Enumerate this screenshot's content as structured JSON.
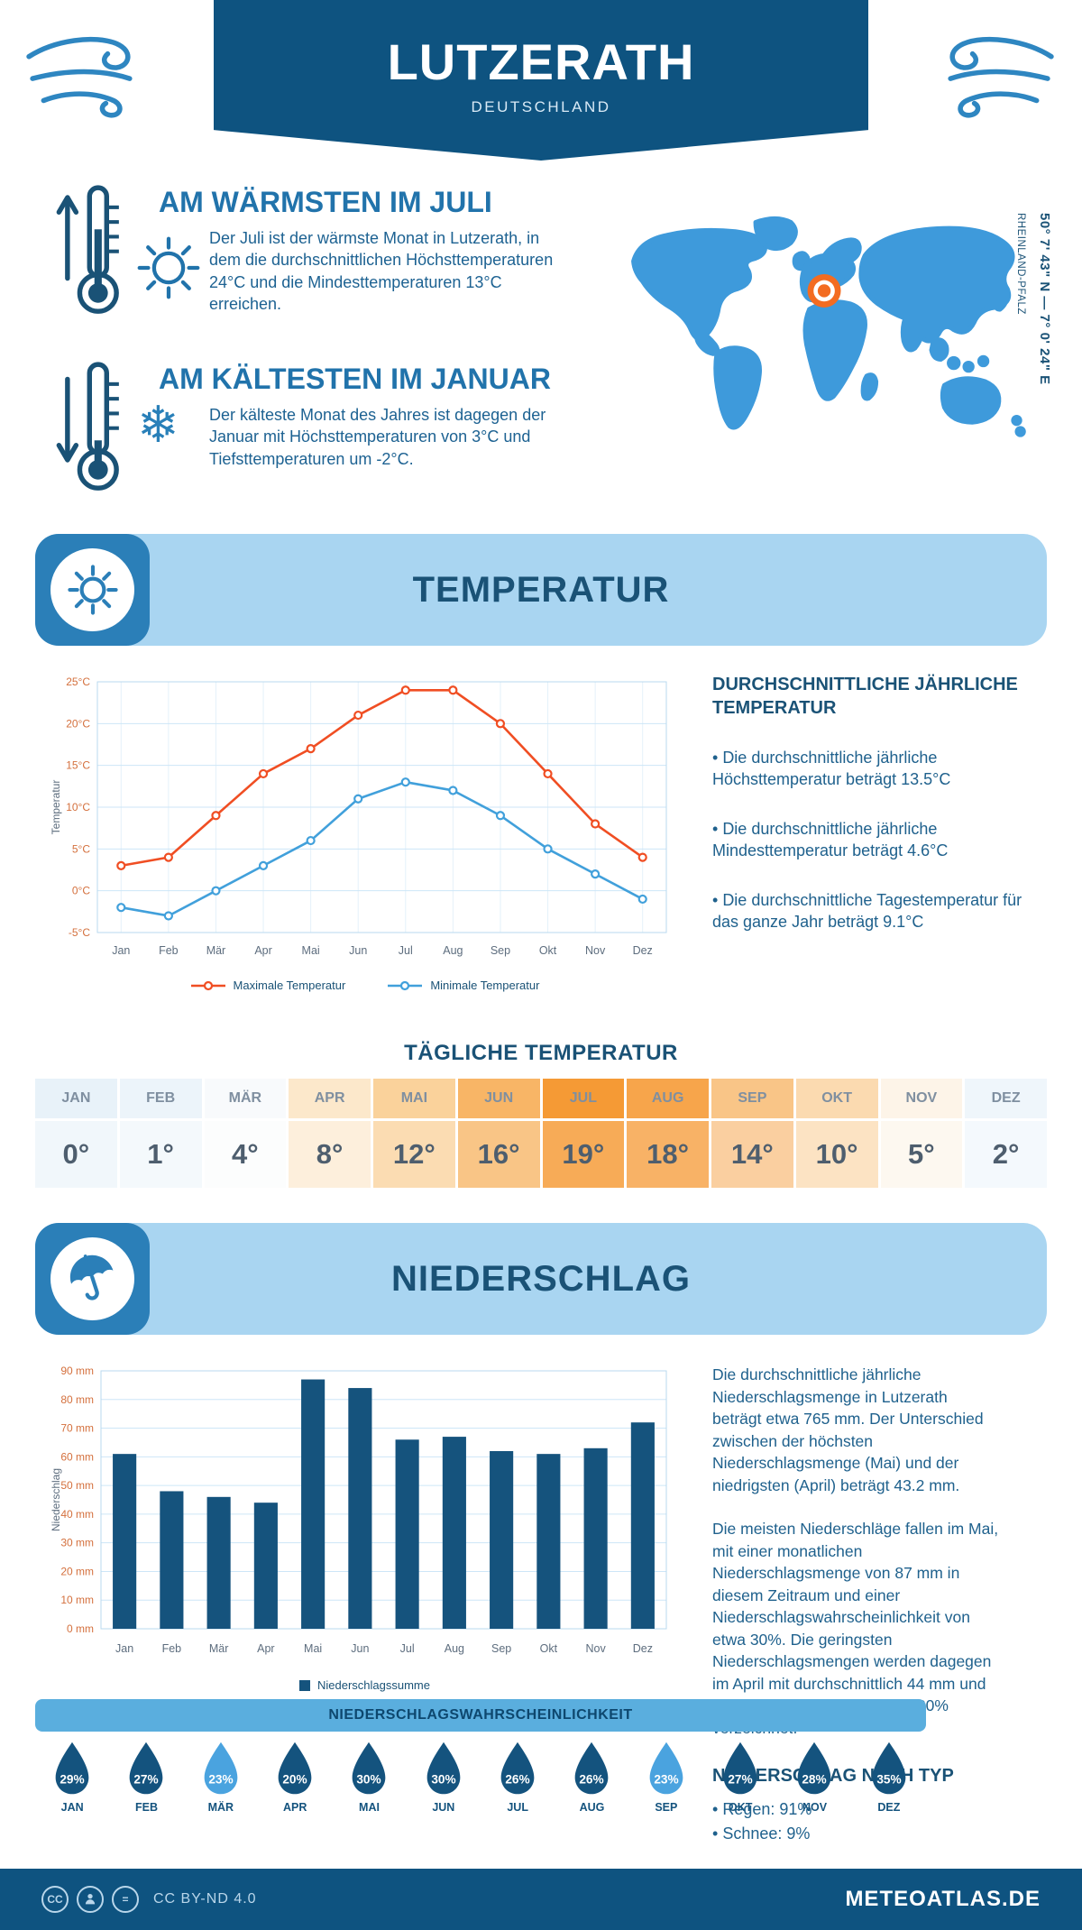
{
  "header": {
    "title": "LUTZERATH",
    "subtitle": "DEUTSCHLAND"
  },
  "highlights": {
    "warm_title": "AM WÄRMSTEN IM JULI",
    "warm_text": "Der Juli ist der wärmste Monat in Lutzerath, in dem die durchschnittlichen Höchsttemperaturen 24°C und die Mindesttemperaturen 13°C erreichen.",
    "cold_title": "AM KÄLTESTEN IM JANUAR",
    "cold_text": "Der kälteste Monat des Jahres ist dagegen der Januar mit Höchsttemperaturen von 3°C und Tiefsttemperaturen um -2°C.",
    "coordinates": "50° 7' 43\" N — 7° 0' 24\" E",
    "region": "RHEINLAND-PFALZ"
  },
  "temperature": {
    "banner": "TEMPERATUR",
    "aside_title": "DURCHSCHNITTLICHE JÄHRLICHE TEMPERATUR",
    "bullets": [
      "Die durchschnittliche jährliche Höchsttemperatur beträgt 13.5°C",
      "Die durchschnittliche jährliche Mindesttemperatur beträgt 4.6°C",
      "Die durchschnittliche Tagestemperatur für das ganze Jahr beträgt 9.1°C"
    ],
    "daily_title": "TÄGLICHE TEMPERATUR",
    "daily": [
      {
        "month": "JAN",
        "value": "0°",
        "header_color": "#e8f2f9",
        "color": "#f1f7fb"
      },
      {
        "month": "FEB",
        "value": "1°",
        "header_color": "#ecf4fa",
        "color": "#f4f9fc"
      },
      {
        "month": "MÄR",
        "value": "4°",
        "header_color": "#f8fafc",
        "color": "#fcfdfd"
      },
      {
        "month": "APR",
        "value": "8°",
        "header_color": "#fce8cb",
        "color": "#fdefdc"
      },
      {
        "month": "MAI",
        "value": "12°",
        "header_color": "#fad29b",
        "color": "#fbdcb2"
      },
      {
        "month": "JUN",
        "value": "16°",
        "header_color": "#f8b566",
        "color": "#f9c586"
      },
      {
        "month": "JUL",
        "value": "19°",
        "header_color": "#f59a35",
        "color": "#f7ab57"
      },
      {
        "month": "AUG",
        "value": "18°",
        "header_color": "#f7a54b",
        "color": "#f8b266"
      },
      {
        "month": "SEP",
        "value": "14°",
        "header_color": "#f9c587",
        "color": "#facfa0"
      },
      {
        "month": "OKT",
        "value": "10°",
        "header_color": "#fbdab0",
        "color": "#fce3c3"
      },
      {
        "month": "NOV",
        "value": "5°",
        "header_color": "#fdf4e8",
        "color": "#fdf8f0"
      },
      {
        "month": "DEZ",
        "value": "2°",
        "header_color": "#eff6fb",
        "color": "#f4f9fd"
      }
    ]
  },
  "precipitation": {
    "banner": "NIEDERSCHLAG",
    "aside_text1": "Die durchschnittliche jährliche Niederschlagsmenge in Lutzerath beträgt etwa 765 mm. Der Unterschied zwischen der höchsten Niederschlagsmenge (Mai) und der niedrigsten (April) beträgt 43.2 mm.",
    "aside_text2": "Die meisten Niederschläge fallen im Mai, mit einer monatlichen Niederschlagsmenge von 87 mm in diesem Zeitraum und einer Niederschlagswahrscheinlichkeit von etwa 30%. Die geringsten Niederschlagsmengen werden dagegen im April mit durchschnittlich 44 mm und einer Wahrscheinlichkeit von 20% verzeichnet.",
    "type_title": "NIEDERSCHLAG NACH TYP",
    "type_bullets": [
      "Regen: 91%",
      "Schnee: 9%"
    ],
    "probability_title": "NIEDERSCHLAGSWAHRSCHEINLICHKEIT",
    "probability": [
      {
        "month": "JAN",
        "value": "29%",
        "tone": "dark"
      },
      {
        "month": "FEB",
        "value": "27%",
        "tone": "dark"
      },
      {
        "month": "MÄR",
        "value": "23%",
        "tone": "light"
      },
      {
        "month": "APR",
        "value": "20%",
        "tone": "dark"
      },
      {
        "month": "MAI",
        "value": "30%",
        "tone": "dark"
      },
      {
        "month": "JUN",
        "value": "30%",
        "tone": "dark"
      },
      {
        "month": "JUL",
        "value": "26%",
        "tone": "dark"
      },
      {
        "month": "AUG",
        "value": "26%",
        "tone": "dark"
      },
      {
        "month": "SEP",
        "value": "23%",
        "tone": "light"
      },
      {
        "month": "OKT",
        "value": "27%",
        "tone": "dark"
      },
      {
        "month": "NOV",
        "value": "28%",
        "tone": "dark"
      },
      {
        "month": "DEZ",
        "value": "35%",
        "tone": "dark"
      }
    ],
    "drop_colors": {
      "dark": "#14537e",
      "light": "#4aa3df"
    }
  },
  "footer": {
    "license": "CC BY-ND 4.0",
    "site": "METEOATLAS.DE"
  },
  "chart_data": [
    {
      "type": "line",
      "categories": [
        "Jan",
        "Feb",
        "Mär",
        "Apr",
        "Mai",
        "Jun",
        "Jul",
        "Aug",
        "Sep",
        "Okt",
        "Nov",
        "Dez"
      ],
      "series": [
        {
          "name": "Maximale Temperatur",
          "color": "#f04e23",
          "values": [
            3,
            4,
            9,
            14,
            17,
            21,
            24,
            24,
            20,
            14,
            8,
            4
          ]
        },
        {
          "name": "Minimale Temperatur",
          "color": "#41a0db",
          "values": [
            -2,
            -3,
            0,
            3,
            6,
            11,
            13,
            12,
            9,
            5,
            2,
            -1
          ]
        }
      ],
      "ylabel": "Temperatur",
      "ylim": [
        -5,
        25
      ],
      "ytick_step": 5,
      "ytick_suffix": "°C",
      "grid": true,
      "legend_position": "bottom"
    },
    {
      "type": "bar",
      "categories": [
        "Jan",
        "Feb",
        "Mär",
        "Apr",
        "Mai",
        "Jun",
        "Jul",
        "Aug",
        "Sep",
        "Okt",
        "Nov",
        "Dez"
      ],
      "series": [
        {
          "name": "Niederschlagssumme",
          "color": "#15537d",
          "values": [
            61,
            48,
            46,
            44,
            87,
            84,
            66,
            67,
            62,
            61,
            63,
            72
          ]
        }
      ],
      "ylabel": "Niederschlag",
      "ylim": [
        0,
        90
      ],
      "ytick_step": 10,
      "ytick_suffix": " mm",
      "grid": true,
      "legend_position": "bottom"
    }
  ]
}
